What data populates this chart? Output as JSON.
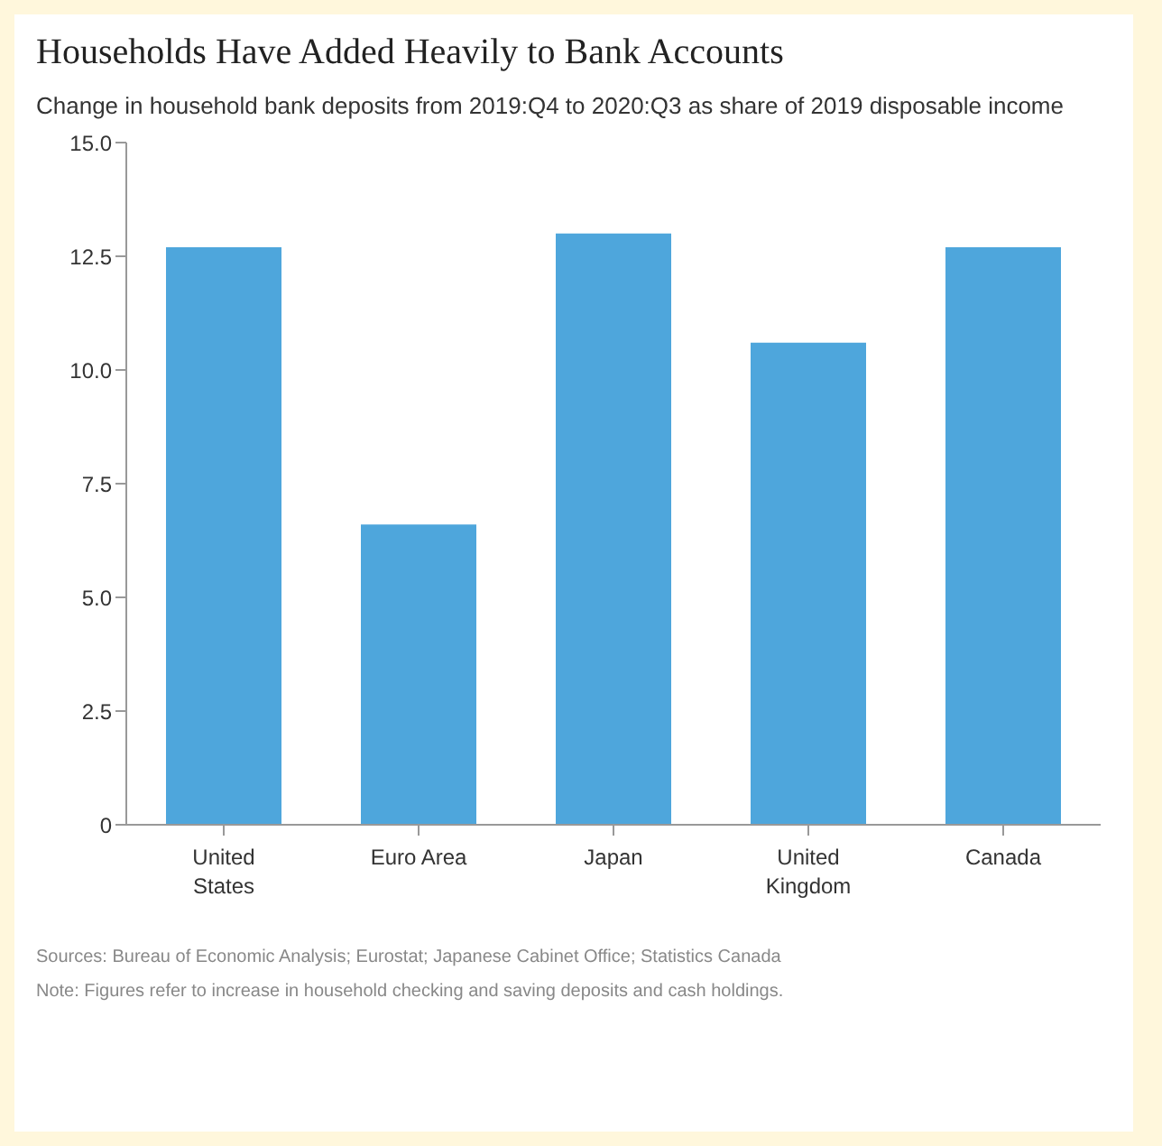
{
  "chart_data": {
    "type": "bar",
    "title": "Households Have Added Heavily to Bank Accounts",
    "subtitle": "Change in household bank deposits from 2019:Q4 to 2020:Q3 as share of 2019 disposable income",
    "categories": [
      "United States",
      "Euro Area",
      "Japan",
      "United Kingdom",
      "Canada"
    ],
    "values": [
      12.7,
      6.6,
      13.0,
      10.6,
      12.7
    ],
    "color": "#4ea6dc",
    "ylim": [
      0,
      15
    ],
    "yticks": [
      {
        "value": 0,
        "label": "0"
      },
      {
        "value": 2.5,
        "label": "2.5"
      },
      {
        "value": 5,
        "label": "5.0"
      },
      {
        "value": 7.5,
        "label": "7.5"
      },
      {
        "value": 10,
        "label": "10.0"
      },
      {
        "value": 12.5,
        "label": "12.5"
      },
      {
        "value": 15,
        "label": "15.0"
      }
    ],
    "grid": false,
    "legend": false,
    "annotations": [
      "Sources: Bureau of Economic Analysis; Eurostat; Japanese Cabinet Office; Statistics Canada",
      "Note: Figures refer to increase in household checking and saving deposits and cash holdings."
    ]
  }
}
